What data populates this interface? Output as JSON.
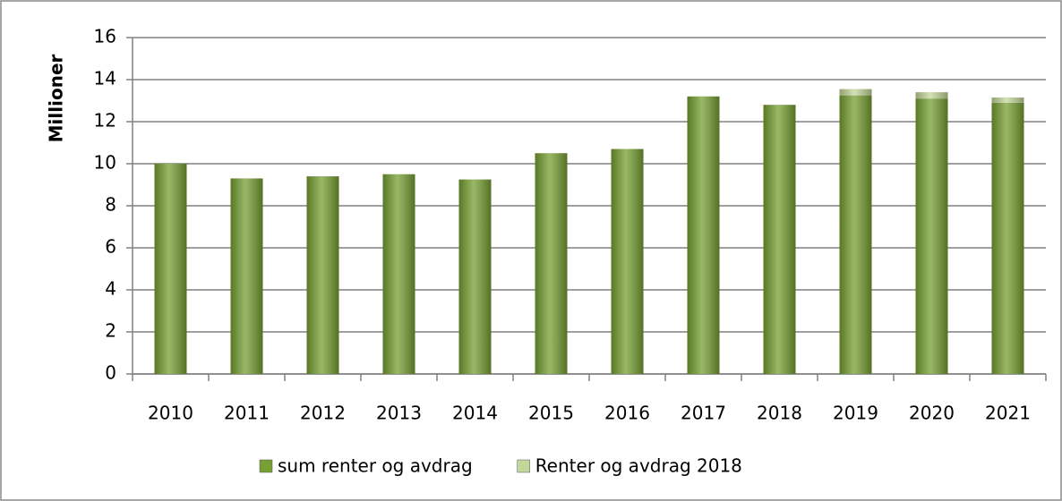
{
  "chart_data": {
    "type": "stacked-bar",
    "y_label": "Millioner",
    "categories": [
      "2010",
      "2011",
      "2012",
      "2013",
      "2014",
      "2015",
      "2016",
      "2017",
      "2018",
      "2019",
      "2020",
      "2021"
    ],
    "series": [
      {
        "name": "sum renter og avdrag",
        "color": "#77a033",
        "values": [
          10.0,
          9.3,
          9.4,
          9.5,
          9.25,
          10.5,
          10.7,
          13.2,
          12.8,
          13.25,
          13.1,
          12.9
        ]
      },
      {
        "name": "Renter og avdrag 2018",
        "color": "#c4d79b",
        "values": [
          null,
          null,
          null,
          null,
          null,
          null,
          null,
          null,
          null,
          0.3,
          0.3,
          0.25
        ]
      }
    ],
    "ylim": [
      0,
      16
    ],
    "yticks": [
      0,
      2,
      4,
      6,
      8,
      10,
      12,
      14,
      16
    ],
    "grid": true,
    "legend": "bottom"
  }
}
